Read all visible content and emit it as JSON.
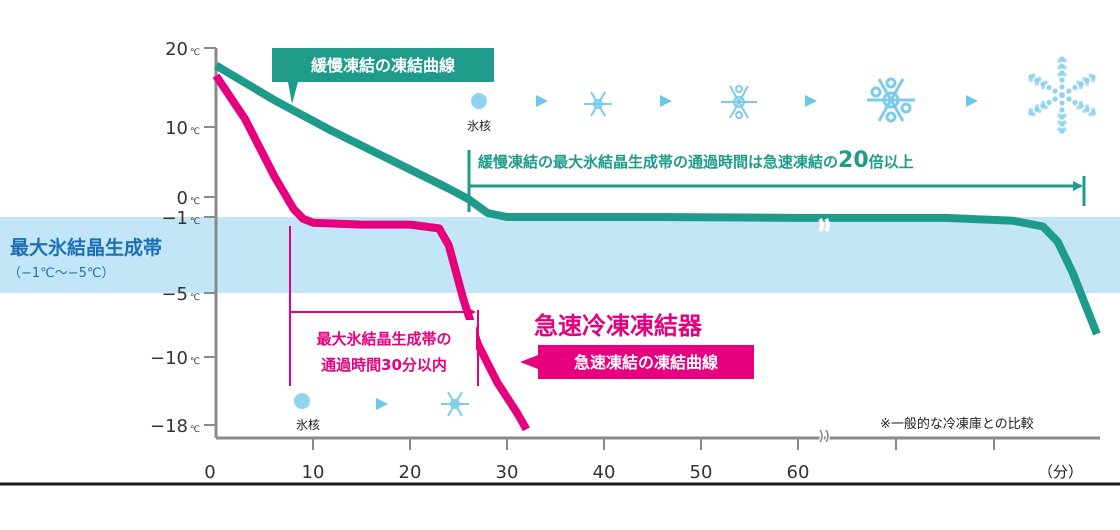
{
  "chart_data": {
    "type": "line",
    "title": "",
    "xlabel": "",
    "ylabel": "",
    "x_unit": "（分）",
    "xlim": [
      0,
      90
    ],
    "ylim": [
      -18,
      20
    ],
    "x_ticks": [
      {
        "value": 0,
        "label": "0"
      },
      {
        "value": 10,
        "label": "10"
      },
      {
        "value": 20,
        "label": "20"
      },
      {
        "value": 30,
        "label": "30"
      },
      {
        "value": 40,
        "label": "40"
      },
      {
        "value": 50,
        "label": "50"
      },
      {
        "value": 60,
        "label": "60"
      },
      {
        "value": 70,
        "label": ""
      },
      {
        "value": 80,
        "label": ""
      }
    ],
    "y_ticks": [
      {
        "value": 20,
        "label": "20",
        "unit": "℃"
      },
      {
        "value": 10,
        "label": "10",
        "unit": "℃"
      },
      {
        "value": 0,
        "label": "0",
        "unit": "℃"
      },
      {
        "value": -1,
        "label": "−1",
        "unit": "℃"
      },
      {
        "value": -5,
        "label": "−5",
        "unit": "℃"
      },
      {
        "value": -10,
        "label": "−10",
        "unit": "℃"
      },
      {
        "value": -18,
        "label": "−18",
        "unit": "℃"
      }
    ],
    "band": {
      "from": -1,
      "to": -5,
      "label": "最大氷結晶生成帯",
      "sublabel": "（−1℃〜−5℃）",
      "color": "#c2e5f7"
    },
    "series": [
      {
        "name": "緩慢凍結の凍結曲線",
        "color": "#1e9b8a",
        "x": [
          0,
          6,
          12,
          18,
          24,
          26,
          28,
          30,
          45,
          60,
          75,
          82,
          85,
          86.5,
          88,
          90.5
        ],
        "y": [
          17.8,
          13.4,
          9.4,
          5.3,
          1.2,
          -0.1,
          -0.8,
          -1.0,
          -1.0,
          -1.05,
          -1.05,
          -1.2,
          -1.5,
          -2.3,
          -3.9,
          -8.2
        ]
      },
      {
        "name": "急速凍結の凍結曲線",
        "color": "#e6007e",
        "x": [
          0,
          3,
          6,
          8,
          9,
          10,
          15,
          20,
          23,
          24,
          25.5,
          27,
          29,
          31,
          32
        ],
        "y": [
          16.5,
          11.0,
          3.0,
          -0.6,
          -1.1,
          -1.3,
          -1.4,
          -1.4,
          -1.6,
          -2.5,
          -5.5,
          -9.0,
          -13.0,
          -16.5,
          -18.5
        ]
      }
    ],
    "annotations": {
      "slow_label": "緩慢凍結の凍結曲線",
      "fast_label": "急速凍結の凍結曲線",
      "fast_title": "急速冷凍凍結器",
      "slow_bracket_text_a": "緩慢凍結の最大氷結晶生成帯の通過時間は急速凍結の",
      "slow_bracket_text_num": "20",
      "slow_bracket_text_b": "倍以上",
      "fast_bracket_line1": "最大氷結晶生成帯の",
      "fast_bracket_line2": "通過時間30分以内",
      "ice_nucleus_label": "氷核",
      "footnote": "※一般的な冷凍庫との比較"
    }
  }
}
